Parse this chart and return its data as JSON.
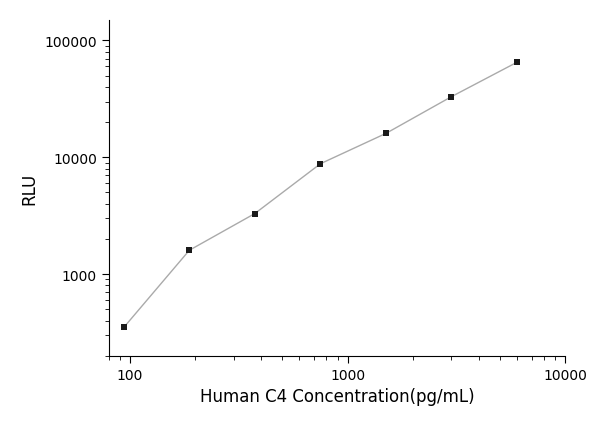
{
  "x": [
    93.75,
    187.5,
    375,
    750,
    1500,
    3000,
    6000
  ],
  "y": [
    350,
    1600,
    3300,
    8800,
    16000,
    33000,
    65000
  ],
  "xlabel": "Human C4 Concentration(pg/mL)",
  "ylabel": "RLU",
  "xlim": [
    80,
    10000
  ],
  "ylim": [
    200,
    150000
  ],
  "xticks": [
    100,
    1000,
    10000
  ],
  "yticks": [
    1000,
    10000,
    100000
  ],
  "line_color": "#aaaaaa",
  "marker_color": "#1a1a1a",
  "marker": "s",
  "marker_size": 5,
  "line_width": 1.0,
  "xlabel_fontsize": 12,
  "ylabel_fontsize": 12,
  "tick_fontsize": 10,
  "background_color": "#ffffff"
}
